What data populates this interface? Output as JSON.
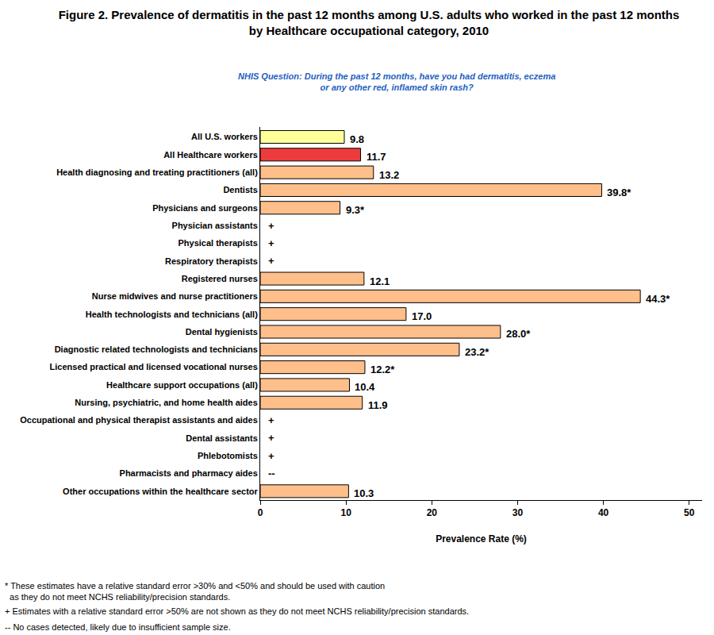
{
  "chart_data": {
    "type": "bar",
    "orientation": "horizontal",
    "title": "Figure 2. Prevalence of dermatitis in the past 12 months among U.S. adults who worked in the past 12 months\nby Healthcare occupational category, 2010",
    "subtitle": "NHIS Question: During the past 12 months, have you had dermatitis, eczema\nor any other red, inflamed skin rash?",
    "x_label": "Prevalence Rate (%)",
    "categories": [
      "All U.S. workers",
      "All Healthcare workers",
      "Health diagnosing and treating practitioners (all)",
      "Dentists",
      "Physicians and surgeons",
      "Physician assistants",
      "Physical therapists",
      "Respiratory therapists",
      "Registered nurses",
      "Nurse midwives and nurse practitioners",
      "Health technologists and technicians (all)",
      "Dental hygienists",
      "Diagnostic related technologists and technicians",
      "Licensed practical and licensed vocational nurses",
      "Healthcare support occupations (all)",
      "Nursing, psychiatric, and home health aides",
      "Occupational and physical therapist assistants and aides",
      "Dental assistants",
      "Phlebotomists",
      "Pharmacists and pharmacy aides",
      "Other occupations within the healthcare sector"
    ],
    "values": [
      9.8,
      11.7,
      13.2,
      39.8,
      9.3,
      null,
      null,
      null,
      12.1,
      44.3,
      17.0,
      28.0,
      23.2,
      12.2,
      10.4,
      11.9,
      null,
      null,
      null,
      null,
      10.3
    ],
    "value_labels": [
      "9.8",
      "11.7",
      "13.2",
      "39.8*",
      "9.3*",
      "+",
      "+",
      "+",
      "12.1",
      "44.3*",
      "17.0",
      "28.0*",
      "23.2*",
      "12.2*",
      "10.4",
      "11.9",
      "+",
      "+",
      "+",
      "--",
      "10.3"
    ],
    "colors": [
      "#FFFF99",
      "#EE3B3B",
      "#FFBF8A",
      "#FFBF8A",
      "#FFBF8A",
      "#FFBF8A",
      "#FFBF8A",
      "#FFBF8A",
      "#FFBF8A",
      "#FFBF8A",
      "#FFBF8A",
      "#FFBF8A",
      "#FFBF8A",
      "#FFBF8A",
      "#FFBF8A",
      "#FFBF8A",
      "#FFBF8A",
      "#FFBF8A",
      "#FFBF8A",
      "#FFBF8A",
      "#FFBF8A"
    ],
    "data_labels": true,
    "xlim": [
      0,
      51.5
    ],
    "xticks": [
      0,
      10,
      20,
      30,
      40,
      50
    ],
    "grid": false,
    "notes": [
      [
        "* These estimates have a relative standard error >30% and <50% and should be used with caution",
        "  as they do not meet NCHS reliability/precision standards."
      ],
      [
        "+ Estimates with a relative standard error >50% are not shown as they do not meet NCHS reliability/precision standards."
      ],
      [
        "-- No cases detected, likely due to insufficient sample size."
      ]
    ]
  }
}
